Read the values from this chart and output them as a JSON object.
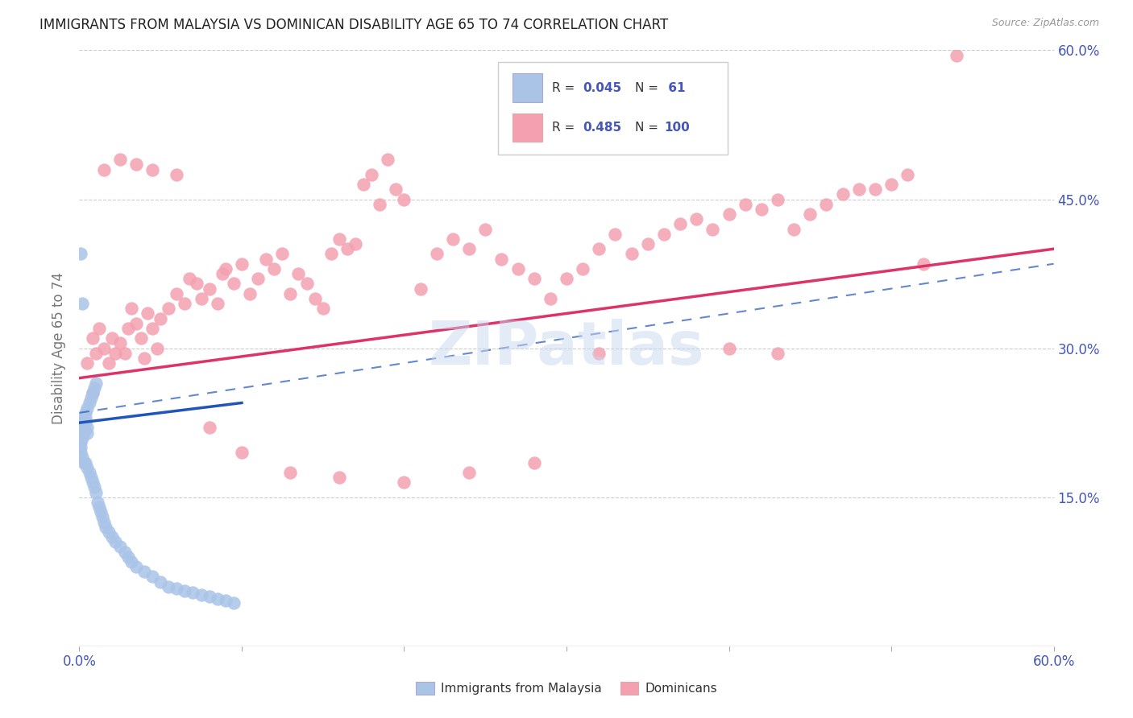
{
  "title": "IMMIGRANTS FROM MALAYSIA VS DOMINICAN DISABILITY AGE 65 TO 74 CORRELATION CHART",
  "source": "Source: ZipAtlas.com",
  "ylabel": "Disability Age 65 to 74",
  "xmin": 0.0,
  "xmax": 0.6,
  "ymin": 0.0,
  "ymax": 0.6,
  "ytick_positions": [
    0.15,
    0.3,
    0.45,
    0.6
  ],
  "ytick_labels": [
    "15.0%",
    "30.0%",
    "45.0%",
    "60.0%"
  ],
  "xtick_positions": [
    0.0,
    0.1,
    0.2,
    0.3,
    0.4,
    0.5,
    0.6
  ],
  "xtick_labels": [
    "0.0%",
    "",
    "",
    "",
    "",
    "",
    "60.0%"
  ],
  "malaysia_R": "0.045",
  "malaysia_N": "61",
  "dominican_R": "0.485",
  "dominican_N": "100",
  "legend_label_1": "Immigrants from Malaysia",
  "legend_label_2": "Dominicans",
  "watermark": "ZIPatlas",
  "background_color": "#ffffff",
  "grid_color": "#cccccc",
  "malaysia_color": "#aac4e8",
  "dominican_color": "#f4a0b0",
  "malaysia_line_color": "#2255bb",
  "dominican_line_color": "#dd3366",
  "title_color": "#222222",
  "axis_label_color": "#4455bb",
  "tick_label_color": "#4455bb",
  "malaysia_x": [
    0.001,
    0.001,
    0.001,
    0.001,
    0.001,
    0.002,
    0.002,
    0.002,
    0.002,
    0.002,
    0.003,
    0.003,
    0.003,
    0.003,
    0.003,
    0.004,
    0.004,
    0.004,
    0.004,
    0.005,
    0.005,
    0.005,
    0.005,
    0.006,
    0.006,
    0.007,
    0.007,
    0.008,
    0.008,
    0.009,
    0.009,
    0.01,
    0.01,
    0.011,
    0.012,
    0.013,
    0.014,
    0.015,
    0.016,
    0.018,
    0.02,
    0.022,
    0.025,
    0.028,
    0.03,
    0.032,
    0.035,
    0.04,
    0.045,
    0.05,
    0.055,
    0.06,
    0.065,
    0.07,
    0.075,
    0.08,
    0.085,
    0.09,
    0.095,
    0.001,
    0.002
  ],
  "malaysia_y": [
    0.215,
    0.21,
    0.205,
    0.2,
    0.195,
    0.225,
    0.22,
    0.215,
    0.21,
    0.19,
    0.23,
    0.225,
    0.22,
    0.215,
    0.185,
    0.235,
    0.23,
    0.225,
    0.185,
    0.24,
    0.22,
    0.215,
    0.18,
    0.245,
    0.175,
    0.25,
    0.17,
    0.255,
    0.165,
    0.26,
    0.16,
    0.265,
    0.155,
    0.145,
    0.14,
    0.135,
    0.13,
    0.125,
    0.12,
    0.115,
    0.11,
    0.105,
    0.1,
    0.095,
    0.09,
    0.085,
    0.08,
    0.075,
    0.07,
    0.065,
    0.06,
    0.058,
    0.056,
    0.054,
    0.052,
    0.05,
    0.048,
    0.046,
    0.044,
    0.395,
    0.345
  ],
  "dominican_x": [
    0.005,
    0.008,
    0.01,
    0.012,
    0.015,
    0.018,
    0.02,
    0.022,
    0.025,
    0.028,
    0.03,
    0.032,
    0.035,
    0.038,
    0.04,
    0.042,
    0.045,
    0.048,
    0.05,
    0.055,
    0.06,
    0.065,
    0.068,
    0.072,
    0.075,
    0.08,
    0.085,
    0.088,
    0.09,
    0.095,
    0.1,
    0.105,
    0.11,
    0.115,
    0.12,
    0.125,
    0.13,
    0.135,
    0.14,
    0.145,
    0.15,
    0.155,
    0.16,
    0.165,
    0.17,
    0.175,
    0.18,
    0.185,
    0.19,
    0.195,
    0.2,
    0.21,
    0.22,
    0.23,
    0.24,
    0.25,
    0.26,
    0.27,
    0.28,
    0.29,
    0.3,
    0.31,
    0.32,
    0.33,
    0.34,
    0.35,
    0.36,
    0.37,
    0.38,
    0.39,
    0.4,
    0.41,
    0.42,
    0.43,
    0.44,
    0.45,
    0.46,
    0.47,
    0.48,
    0.49,
    0.5,
    0.51,
    0.52,
    0.008,
    0.015,
    0.025,
    0.035,
    0.045,
    0.06,
    0.08,
    0.1,
    0.13,
    0.16,
    0.2,
    0.24,
    0.28,
    0.32,
    0.4,
    0.43,
    0.54
  ],
  "dominican_y": [
    0.285,
    0.31,
    0.295,
    0.32,
    0.3,
    0.285,
    0.31,
    0.295,
    0.305,
    0.295,
    0.32,
    0.34,
    0.325,
    0.31,
    0.29,
    0.335,
    0.32,
    0.3,
    0.33,
    0.34,
    0.355,
    0.345,
    0.37,
    0.365,
    0.35,
    0.36,
    0.345,
    0.375,
    0.38,
    0.365,
    0.385,
    0.355,
    0.37,
    0.39,
    0.38,
    0.395,
    0.355,
    0.375,
    0.365,
    0.35,
    0.34,
    0.395,
    0.41,
    0.4,
    0.405,
    0.465,
    0.475,
    0.445,
    0.49,
    0.46,
    0.45,
    0.36,
    0.395,
    0.41,
    0.4,
    0.42,
    0.39,
    0.38,
    0.37,
    0.35,
    0.37,
    0.38,
    0.4,
    0.415,
    0.395,
    0.405,
    0.415,
    0.425,
    0.43,
    0.42,
    0.435,
    0.445,
    0.44,
    0.45,
    0.42,
    0.435,
    0.445,
    0.455,
    0.46,
    0.46,
    0.465,
    0.475,
    0.385,
    0.255,
    0.48,
    0.49,
    0.485,
    0.48,
    0.475,
    0.22,
    0.195,
    0.175,
    0.17,
    0.165,
    0.175,
    0.185,
    0.295,
    0.3,
    0.295,
    0.595
  ],
  "dom_line_x0": 0.0,
  "dom_line_x1": 0.6,
  "dom_line_y0": 0.27,
  "dom_line_y1": 0.4,
  "mal_line_x0": 0.0,
  "mal_line_x1": 0.1,
  "mal_line_y0": 0.225,
  "mal_line_y1": 0.245,
  "dash_line_x0": 0.0,
  "dash_line_x1": 0.6,
  "dash_line_y0": 0.235,
  "dash_line_y1": 0.385
}
